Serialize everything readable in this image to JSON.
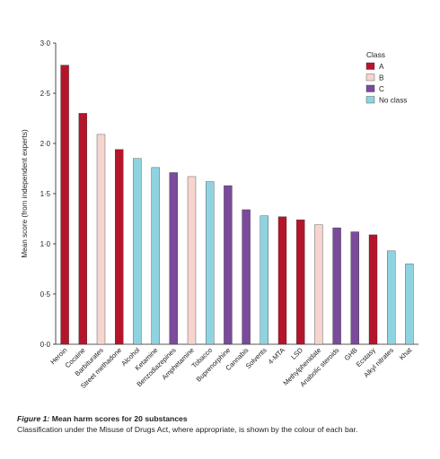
{
  "chart_data": {
    "type": "bar",
    "ylabel": "Mean score (from independent experts)",
    "xlabel": "",
    "ylim": [
      0,
      3
    ],
    "yticks": [
      "0·0",
      "0·5",
      "1·0",
      "1·5",
      "2·0",
      "2·5",
      "3·0"
    ],
    "grid": false,
    "legend": {
      "title": "Class",
      "placement": "top-right",
      "entries": [
        {
          "name": "A",
          "color": "#b5152b"
        },
        {
          "name": "B",
          "color": "#f6d4d0"
        },
        {
          "name": "C",
          "color": "#7b4a9b"
        },
        {
          "name": "No class",
          "color": "#8fd3e0"
        }
      ]
    },
    "categories": [
      "Heroin",
      "Cocaine",
      "Barbiturates",
      "Street methadone",
      "Alcohol",
      "Ketamine",
      "Benzodiazepines",
      "Amphetamine",
      "Tobacco",
      "Buprenorphine",
      "Cannabis",
      "Solvents",
      "4-MTA",
      "LSD",
      "Methylphenidate",
      "Anabolic steroids",
      "GHB",
      "Ecstasy",
      "Alkyl nitrates",
      "Khat"
    ],
    "values": [
      2.78,
      2.3,
      2.09,
      1.94,
      1.85,
      1.76,
      1.71,
      1.67,
      1.62,
      1.58,
      1.34,
      1.28,
      1.27,
      1.24,
      1.19,
      1.16,
      1.12,
      1.09,
      0.93,
      0.8
    ],
    "classes": [
      "A",
      "A",
      "B",
      "A",
      "No class",
      "No class",
      "C",
      "B",
      "No class",
      "C",
      "C",
      "No class",
      "A",
      "A",
      "B",
      "C",
      "C",
      "A",
      "No class",
      "No class"
    ]
  },
  "caption": {
    "label": "Figure 1:",
    "title": "Mean harm scores for 20 substances",
    "description": "Classification under the Misuse of Drugs Act, where appropriate, is shown by the colour of each bar."
  }
}
